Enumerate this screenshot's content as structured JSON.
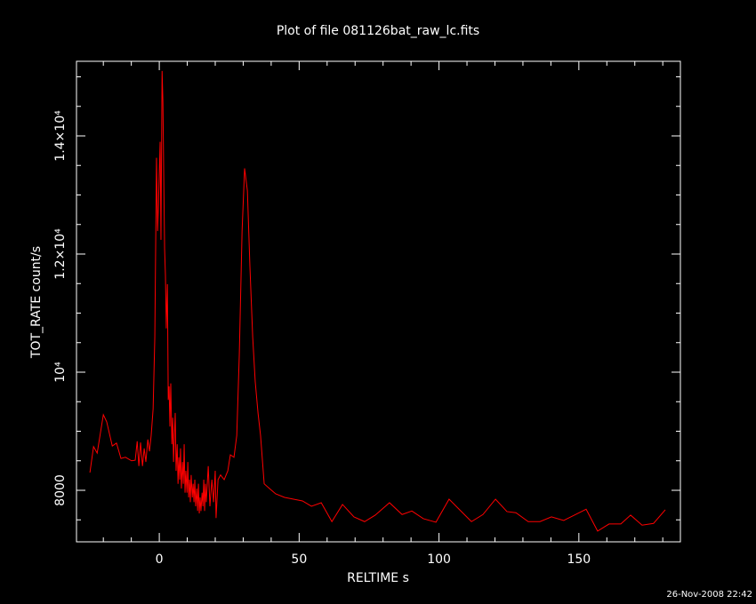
{
  "chart_data": {
    "type": "line",
    "title": "Plot of file 081126bat_raw_lc.fits",
    "xlabel": "RELTIME  s",
    "ylabel": "TOT_RATE  count/s",
    "timestamp": "26-Nov-2008 22:42",
    "color": "#ff0000",
    "xlim": [
      -29.6,
      186.3
    ],
    "ylim": [
      7128,
      15263
    ],
    "xticks": [
      0,
      50,
      100,
      150
    ],
    "xminorticks": [
      -20,
      -10,
      10,
      20,
      30,
      40,
      60,
      70,
      80,
      90,
      110,
      120,
      130,
      140,
      160,
      170,
      180
    ],
    "yticks": [
      8000,
      {
        "value": 10000,
        "label": "10⁴"
      },
      {
        "value": 12000,
        "label": "1.2×10⁴"
      },
      {
        "value": 14000,
        "label": "1.4×10⁴"
      }
    ],
    "yminorticks": [
      7500,
      8500,
      9000,
      9500,
      10500,
      11000,
      11500,
      12500,
      13000,
      13500,
      14500,
      15000
    ],
    "x": [
      -24.8,
      -23.5,
      -22.2,
      -20.0,
      -18.8,
      -16.8,
      -15.3,
      -13.7,
      -12.1,
      -9.9,
      -8.6,
      -7.9,
      -7.3,
      -6.7,
      -6.0,
      -5.4,
      -4.8,
      -4.1,
      -3.5,
      -2.9,
      -2.2,
      -1.6,
      -1.0,
      -0.6,
      -0.3,
      0.3,
      0.6,
      1.0,
      1.3,
      1.6,
      1.9,
      2.2,
      2.5,
      2.9,
      3.2,
      3.5,
      3.8,
      4.1,
      4.5,
      4.8,
      5.1,
      5.4,
      5.7,
      6.0,
      6.4,
      6.7,
      7.0,
      7.3,
      7.6,
      7.9,
      8.3,
      8.6,
      8.9,
      9.2,
      9.5,
      9.9,
      10.2,
      10.5,
      10.8,
      11.1,
      11.4,
      11.8,
      12.1,
      12.4,
      12.7,
      13.0,
      13.4,
      13.7,
      14.0,
      14.3,
      14.6,
      14.9,
      15.3,
      15.6,
      15.9,
      16.2,
      16.5,
      16.8,
      17.5,
      18.1,
      18.8,
      19.4,
      20.0,
      20.3,
      21.0,
      21.9,
      23.2,
      24.5,
      25.4,
      26.7,
      27.7,
      28.6,
      29.6,
      30.5,
      31.5,
      32.4,
      33.4,
      34.3,
      35.3,
      36.2,
      37.5,
      39.4,
      41.6,
      44.8,
      48.0,
      51.2,
      54.4,
      57.9,
      61.7,
      65.5,
      69.6,
      73.4,
      77.2,
      82.3,
      86.8,
      90.3,
      94.4,
      98.9,
      103.6,
      107.4,
      111.6,
      115.7,
      120.2,
      124.3,
      127.5,
      131.9,
      136.1,
      140.2,
      144.6,
      148.8,
      152.6,
      156.7,
      160.8,
      165.0,
      168.5,
      172.6,
      176.7,
      180.9
    ],
    "values": [
      8300,
      8740,
      8630,
      9280,
      9160,
      8750,
      8800,
      8540,
      8560,
      8500,
      8510,
      8830,
      8410,
      8810,
      8410,
      8710,
      8480,
      8860,
      8660,
      8930,
      9380,
      10590,
      13630,
      12390,
      12840,
      13900,
      12240,
      15100,
      14570,
      13290,
      12090,
      11640,
      10740,
      11490,
      9530,
      9760,
      9080,
      9810,
      8780,
      9230,
      8480,
      8930,
      9310,
      8330,
      8780,
      8110,
      8560,
      8180,
      8710,
      8030,
      8480,
      8110,
      8780,
      7960,
      8330,
      7960,
      8480,
      7880,
      8180,
      7800,
      8260,
      7880,
      8110,
      7800,
      8180,
      7730,
      8030,
      7650,
      8110,
      7610,
      7880,
      7650,
      7960,
      7730,
      8180,
      7650,
      8110,
      7800,
      8410,
      7730,
      8180,
      7800,
      8330,
      7530,
      8180,
      8260,
      8180,
      8330,
      8600,
      8560,
      8930,
      10290,
      12390,
      13450,
      13070,
      11790,
      10590,
      9840,
      9310,
      8930,
      8110,
      8030,
      7940,
      7880,
      7850,
      7820,
      7730,
      7790,
      7470,
      7760,
      7550,
      7470,
      7580,
      7790,
      7590,
      7650,
      7520,
      7460,
      7850,
      7670,
      7470,
      7590,
      7850,
      7640,
      7620,
      7470,
      7470,
      7550,
      7490,
      7590,
      7680,
      7310,
      7430,
      7430,
      7580,
      7410,
      7440,
      7670
    ]
  }
}
